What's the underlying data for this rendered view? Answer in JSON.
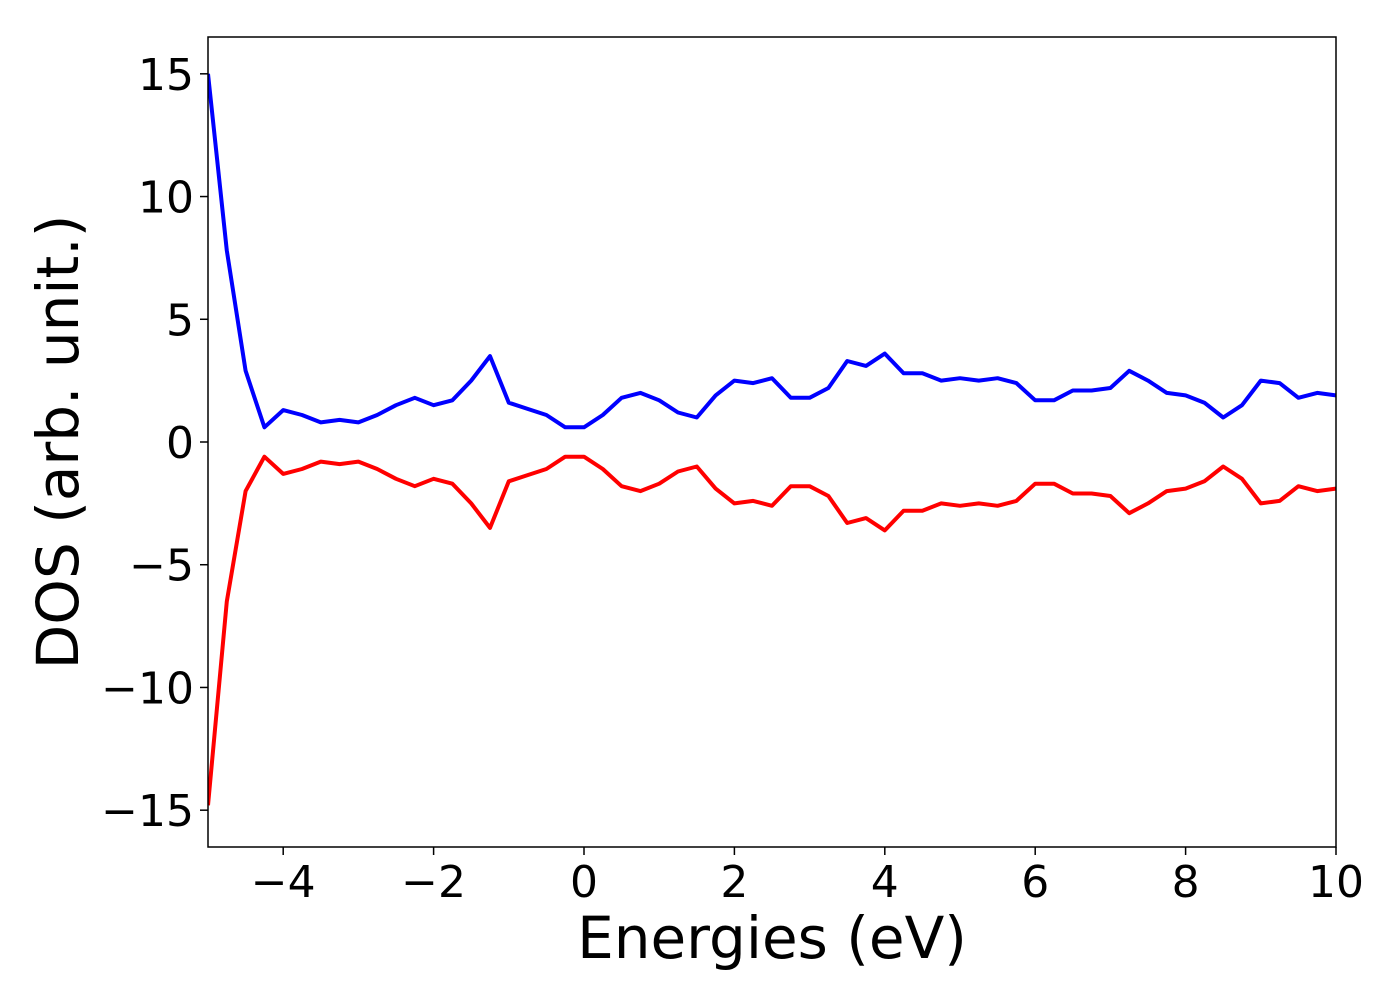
{
  "chart_data": {
    "type": "line",
    "x_label": "Energies (eV)",
    "y_label": "DOS (arb. unit.)",
    "x": [
      -5,
      -4.75,
      -4.5,
      -4.25,
      -4,
      -3.75,
      -3.5,
      -3.25,
      -3,
      -2.75,
      -2.5,
      -2.25,
      -2,
      -1.75,
      -1.5,
      -1.25,
      -1,
      -0.75,
      -0.5,
      -0.25,
      0,
      0.25,
      0.5,
      0.75,
      1,
      1.25,
      1.5,
      1.75,
      2,
      2.25,
      2.5,
      2.75,
      3,
      3.25,
      3.5,
      3.75,
      4,
      4.25,
      4.5,
      4.75,
      5,
      5.25,
      5.5,
      5.75,
      6,
      6.25,
      6.5,
      6.75,
      7,
      7.25,
      7.5,
      7.75,
      8,
      8.25,
      8.5,
      8.75,
      9,
      9.25,
      9.5,
      9.75,
      10
    ],
    "series": [
      {
        "color": "#0000ff",
        "values": [
          15.0,
          7.8,
          2.9,
          0.6,
          1.3,
          1.1,
          0.8,
          0.9,
          0.8,
          1.1,
          1.5,
          1.8,
          1.5,
          1.7,
          2.5,
          3.5,
          1.6,
          1.35,
          1.1,
          0.6,
          0.6,
          1.1,
          1.8,
          2.0,
          1.7,
          1.2,
          1.0,
          1.9,
          2.5,
          2.4,
          2.6,
          1.8,
          1.8,
          2.2,
          3.3,
          3.1,
          3.6,
          2.8,
          2.8,
          2.5,
          2.6,
          2.5,
          2.6,
          2.4,
          1.7,
          1.7,
          2.1,
          2.1,
          2.2,
          2.9,
          2.5,
          2.0,
          1.9,
          1.6,
          1.0,
          1.5,
          2.5,
          2.4,
          1.8,
          2.0,
          1.9
        ]
      },
      {
        "color": "#ff0000",
        "values": [
          -14.8,
          -6.5,
          -2.0,
          -0.6,
          -1.3,
          -1.1,
          -0.8,
          -0.9,
          -0.8,
          -1.1,
          -1.5,
          -1.8,
          -1.5,
          -1.7,
          -2.5,
          -3.5,
          -1.6,
          -1.35,
          -1.1,
          -0.6,
          -0.6,
          -1.1,
          -1.8,
          -2.0,
          -1.7,
          -1.2,
          -1.0,
          -1.9,
          -2.5,
          -2.4,
          -2.6,
          -1.8,
          -1.8,
          -2.2,
          -3.3,
          -3.1,
          -3.6,
          -2.8,
          -2.8,
          -2.5,
          -2.6,
          -2.5,
          -2.6,
          -2.4,
          -1.7,
          -1.7,
          -2.1,
          -2.1,
          -2.2,
          -2.9,
          -2.5,
          -2.0,
          -1.9,
          -1.6,
          -1.0,
          -1.5,
          -2.5,
          -2.4,
          -1.8,
          -2.0,
          -1.9
        ]
      }
    ],
    "xlim": [
      -5,
      10
    ],
    "ylim": [
      -16.5,
      16.5
    ],
    "xticks": [
      {
        "value": -4,
        "label": "−4"
      },
      {
        "value": -2,
        "label": "−2"
      },
      0,
      2,
      4,
      6,
      8,
      10
    ],
    "yticks": [
      {
        "value": -15,
        "label": "−15"
      },
      {
        "value": -10,
        "label": "−10"
      },
      {
        "value": -5,
        "label": "−5"
      },
      0,
      5,
      10,
      15
    ],
    "grid": false
  }
}
